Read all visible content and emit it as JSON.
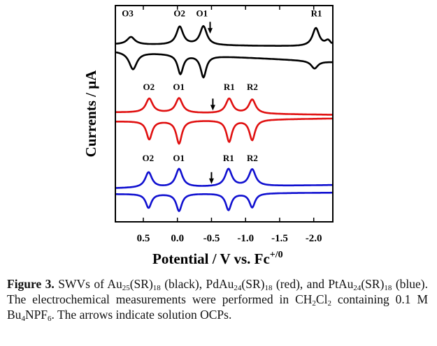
{
  "chart_data": {
    "type": "line",
    "xlabel": "Potential / V vs. Fc",
    "xlabel_sup": "+/0",
    "ylabel": "Currents / μA",
    "xlim": [
      0.91,
      -2.28
    ],
    "ylim": [
      0,
      100
    ],
    "xticks": [
      0.5,
      0.0,
      -0.5,
      -1.0,
      -1.5,
      -2.0
    ],
    "xtick_labels": [
      "0.5",
      "0.0",
      "-0.5",
      "-1.0",
      "-1.5",
      "-2.0"
    ],
    "grid": false,
    "series": [
      {
        "name": "Au25(SR)18",
        "color": "#000000",
        "forward": {
          "baseline": [
            82,
            81
          ],
          "peaks": [
            [
              0.69,
              3.5,
              0.07
            ],
            [
              -0.03,
              8.4,
              0.06
            ],
            [
              -0.38,
              8.7,
              0.06
            ],
            [
              -2.04,
              8.4,
              0.06
            ],
            [
              -2.22,
              2.5,
              0.05
            ]
          ]
        },
        "reverse": {
          "baseline": [
            79,
            74
          ],
          "peaks": [
            [
              0.66,
              -8,
              0.07
            ],
            [
              -0.04,
              -9,
              0.05
            ],
            [
              -0.38,
              -10,
              0.05
            ],
            [
              -2.02,
              -3.5,
              0.06
            ]
          ]
        },
        "labels": [
          {
            "text": "O3",
            "x": 0.73,
            "y": 95
          },
          {
            "text": "O2",
            "x": -0.03,
            "y": 95
          },
          {
            "text": "O1",
            "x": -0.36,
            "y": 95
          },
          {
            "text": "R1",
            "x": -2.04,
            "y": 95
          }
        ],
        "arrow": {
          "x": -0.48,
          "y": 87
        }
      },
      {
        "name": "PdAu24(SR)18",
        "color": "#e01010",
        "forward": {
          "baseline": [
            50.6,
            49.5
          ],
          "peaks": [
            [
              0.42,
              6.5,
              0.06
            ],
            [
              -0.02,
              6.8,
              0.06
            ],
            [
              -0.76,
              6.8,
              0.06
            ],
            [
              -1.1,
              6.5,
              0.06
            ]
          ]
        },
        "reverse": {
          "baseline": [
            46.5,
            47.8
          ],
          "peaks": [
            [
              0.42,
              -8.5,
              0.05
            ],
            [
              -0.02,
              -10.6,
              0.05
            ],
            [
              -0.76,
              -10,
              0.05
            ],
            [
              -1.1,
              -9.4,
              0.05
            ]
          ]
        },
        "labels": [
          {
            "text": "O2",
            "x": 0.42,
            "y": 61
          },
          {
            "text": "O1",
            "x": -0.02,
            "y": 61
          },
          {
            "text": "R1",
            "x": -0.76,
            "y": 61
          },
          {
            "text": "R2",
            "x": -1.1,
            "y": 61
          }
        ],
        "arrow": {
          "x": -0.52,
          "y": 51.5
        }
      },
      {
        "name": "PtAu24(SR)18",
        "color": "#1010d0",
        "forward": {
          "baseline": [
            15.5,
            17
          ],
          "peaks": [
            [
              0.43,
              7.1,
              0.06
            ],
            [
              -0.02,
              8.4,
              0.06
            ],
            [
              -0.75,
              8,
              0.06
            ],
            [
              -1.1,
              7.7,
              0.06
            ]
          ]
        },
        "reverse": {
          "baseline": [
            12.9,
            13.5
          ],
          "peaks": [
            [
              0.43,
              -6.5,
              0.05
            ],
            [
              -0.02,
              -8,
              0.05
            ],
            [
              -0.75,
              -7.7,
              0.05
            ],
            [
              -1.1,
              -6.5,
              0.05
            ]
          ]
        },
        "labels": [
          {
            "text": "O2",
            "x": 0.43,
            "y": 28
          },
          {
            "text": "O1",
            "x": -0.02,
            "y": 28
          },
          {
            "text": "R1",
            "x": -0.75,
            "y": 28
          },
          {
            "text": "R2",
            "x": -1.1,
            "y": 28
          }
        ],
        "arrow": {
          "x": -0.5,
          "y": 17.5
        }
      }
    ]
  },
  "caption": [
    {
      "t": "Figure 3.",
      "b": true
    },
    {
      "t": " SWVs of Au"
    },
    {
      "t": "25",
      "sub": true
    },
    {
      "t": "(SR)"
    },
    {
      "t": "18",
      "sub": true
    },
    {
      "t": " (black), PdAu"
    },
    {
      "t": "24",
      "sub": true
    },
    {
      "t": "(SR)"
    },
    {
      "t": "18",
      "sub": true
    },
    {
      "t": " (red), and PtAu"
    },
    {
      "t": "24",
      "sub": true
    },
    {
      "t": "(SR)"
    },
    {
      "t": "18",
      "sub": true
    },
    {
      "t": " (blue). The electrochemical measurements were performed in CH"
    },
    {
      "t": "2",
      "sub": true
    },
    {
      "t": "Cl"
    },
    {
      "t": "2",
      "sub": true
    },
    {
      "t": " containing 0.1 M Bu"
    },
    {
      "t": "4",
      "sub": true
    },
    {
      "t": "NPF"
    },
    {
      "t": "6",
      "sub": true
    },
    {
      "t": ". The arrows indicate solution OCPs."
    }
  ]
}
